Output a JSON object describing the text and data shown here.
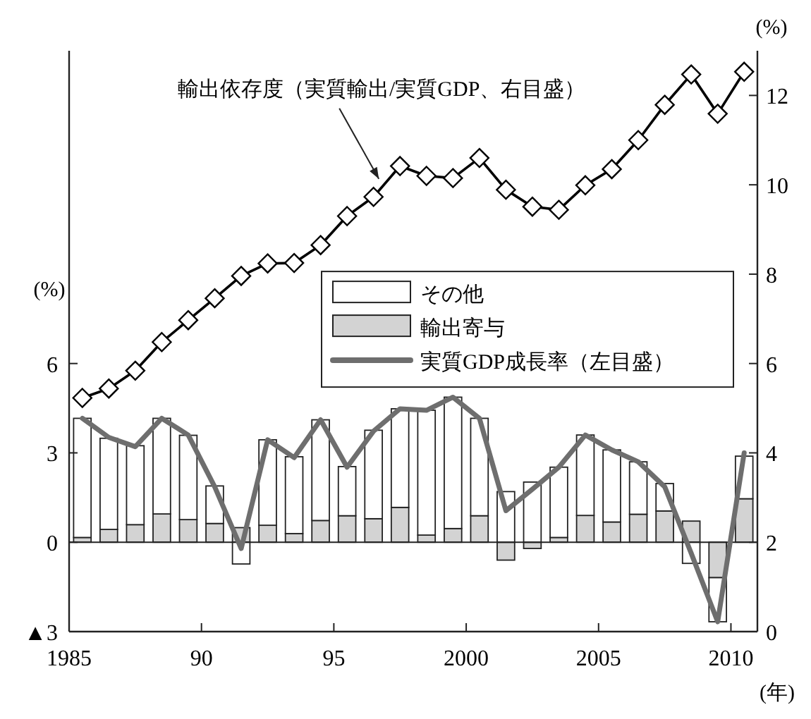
{
  "chart_data": {
    "type": "bar",
    "stacked": true,
    "x": [
      1985.5,
      1986.5,
      1987.5,
      1988.5,
      1989.5,
      1990.5,
      1991.5,
      1992.5,
      1993.5,
      1994.5,
      1995.5,
      1996.5,
      1997.5,
      1998.5,
      1999.5,
      2000.5,
      2001.5,
      2002.5,
      2003.5,
      2004.5,
      2005.5,
      2006.5,
      2007.5,
      2008.5,
      2009.5,
      2010.5
    ],
    "xlabel": "(年)",
    "ylabel": "(%)",
    "y2label": "(%)",
    "xlim": [
      1985,
      2011
    ],
    "xticks": [
      1985,
      {
        "value": 1990,
        "label": "90"
      },
      {
        "value": 1995,
        "label": "95"
      },
      2000,
      2005,
      2010
    ],
    "ylim": [
      -3,
      16.5
    ],
    "yticks": [
      {
        "value": -3,
        "label": "▲3"
      },
      0,
      3,
      6
    ],
    "y2lim": [
      0,
      13
    ],
    "y2ticks": [
      0,
      2,
      4,
      6,
      8,
      10,
      12
    ],
    "series": [
      {
        "name": "輸出寄与",
        "color": "#d3d3d3",
        "values": [
          0.16,
          0.43,
          0.59,
          0.95,
          0.76,
          0.63,
          0.49,
          0.57,
          0.29,
          0.73,
          0.89,
          0.79,
          1.17,
          0.24,
          0.46,
          0.89,
          -0.6,
          -0.21,
          0.16,
          0.9,
          0.68,
          0.94,
          1.05,
          0.71,
          -1.19,
          1.46
        ]
      },
      {
        "name": "その他",
        "color": "#ffffff",
        "values": [
          4.0,
          3.06,
          2.65,
          3.21,
          2.83,
          1.26,
          -0.73,
          2.87,
          2.58,
          3.38,
          1.65,
          2.97,
          3.31,
          4.19,
          4.41,
          3.27,
          1.7,
          2.02,
          2.36,
          2.7,
          2.42,
          1.76,
          0.92,
          -0.71,
          -1.48,
          1.43
        ]
      },
      {
        "name": "実質GDP成長率（左目盛）",
        "type": "line",
        "color": "#6e6e6e",
        "marker": "none",
        "values": [
          4.16,
          3.52,
          3.21,
          4.16,
          3.6,
          1.86,
          -0.21,
          3.44,
          2.84,
          4.11,
          2.52,
          3.73,
          4.48,
          4.43,
          4.87,
          4.16,
          1.06,
          1.78,
          2.52,
          3.6,
          3.1,
          2.7,
          1.86,
          -0.37,
          -2.67,
          3.0
        ]
      },
      {
        "type": "line",
        "axis": "y2",
        "color": "#000000",
        "marker": "diamond",
        "values": [
          5.23,
          5.44,
          5.84,
          6.48,
          6.97,
          7.46,
          7.96,
          8.24,
          8.25,
          8.65,
          9.3,
          9.73,
          10.42,
          10.2,
          10.15,
          10.6,
          9.89,
          9.51,
          9.44,
          9.99,
          10.35,
          11.0,
          11.79,
          12.47,
          11.59,
          12.53
        ]
      }
    ],
    "annotations": [
      {
        "text": "輸出依存度（実質輸出/実質GDP、右目盛）",
        "x": 1996.7,
        "y": 12.2
      }
    ],
    "ref_lines": [
      {
        "axis": "y",
        "value": 0
      }
    ],
    "legend": "right",
    "grid": false
  }
}
